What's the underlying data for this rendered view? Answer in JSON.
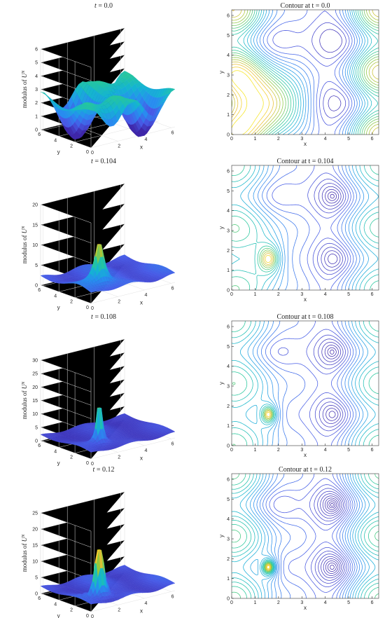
{
  "chart_data": [
    {
      "type": "surface",
      "t": "0.0",
      "title_prefix": "t = ",
      "title": "0.0",
      "zlabel": "modulus of U^N",
      "xlabel": "x",
      "ylabel": "y",
      "xlim": [
        0,
        6.2832
      ],
      "ylim": [
        0,
        6.2832
      ],
      "zlim": [
        0,
        6
      ],
      "xticks": [
        "0",
        "2",
        "4",
        "6"
      ],
      "yticks": [
        "0",
        "2",
        "4",
        "6"
      ],
      "zticks": [
        "0",
        "1",
        "2",
        "3",
        "4",
        "5",
        "6"
      ],
      "peak": 4.6,
      "peak_at": [
        1.57,
        1.57
      ],
      "base": 1.2,
      "sharpness": "smooth"
    },
    {
      "type": "contour",
      "title": "Contour at  t = 0.0",
      "xlabel": "x",
      "ylabel": "y",
      "xlim": [
        0,
        6.2832
      ],
      "ylim": [
        0,
        6.2832
      ],
      "xticks": [
        "0",
        "1",
        "2",
        "3",
        "4",
        "5",
        "6"
      ],
      "yticks": [
        "0",
        "1",
        "2",
        "3",
        "4",
        "5",
        "6"
      ],
      "center": [
        1.57,
        1.57
      ],
      "levels": 22
    },
    {
      "type": "surface",
      "title_prefix": "t = ",
      "title": "0.104",
      "zlabel": "modulus of U^N",
      "xlabel": "x",
      "ylabel": "y",
      "xlim": [
        0,
        6.2832
      ],
      "ylim": [
        0,
        6.2832
      ],
      "zlim": [
        0,
        20
      ],
      "xticks": [
        "0",
        "2",
        "4",
        "6"
      ],
      "yticks": [
        "0",
        "2",
        "4",
        "6"
      ],
      "zticks": [
        "0",
        "5",
        "10",
        "15",
        "20"
      ],
      "peak": 12,
      "peak_at": [
        1.57,
        1.57
      ],
      "base": 1.8,
      "sharpness": "sharp"
    },
    {
      "type": "contour",
      "title": "Contour at  t = 0.104",
      "xlabel": "x",
      "ylabel": "y",
      "xlim": [
        0,
        6.2832
      ],
      "ylim": [
        0,
        6.2832
      ],
      "xticks": [
        "0",
        "1",
        "2",
        "3",
        "4",
        "5",
        "6"
      ],
      "yticks": [
        "0",
        "1",
        "2",
        "3",
        "4",
        "5",
        "6"
      ],
      "center": [
        1.57,
        1.57
      ],
      "levels": 22
    },
    {
      "type": "surface",
      "title_prefix": "t = ",
      "title": "0.108",
      "zlabel": "modulus of U^N",
      "xlabel": "x",
      "ylabel": "y",
      "xlim": [
        0,
        6.2832
      ],
      "ylim": [
        0,
        6.2832
      ],
      "zlim": [
        0,
        30
      ],
      "xticks": [
        "0",
        "2",
        "4",
        "6"
      ],
      "yticks": [
        "0",
        "2",
        "4",
        "6"
      ],
      "zticks": [
        "0",
        "5",
        "10",
        "15",
        "20",
        "25",
        "30"
      ],
      "peak": 20,
      "peak_at": [
        1.57,
        1.57
      ],
      "base": 1.8,
      "sharpness": "very-sharp"
    },
    {
      "type": "contour",
      "title": "Contour at  t = 0.108",
      "xlabel": "x",
      "ylabel": "y",
      "xlim": [
        0,
        6.2832
      ],
      "ylim": [
        0,
        6.2832
      ],
      "xticks": [
        "0",
        "1",
        "2",
        "3",
        "4",
        "5",
        "6"
      ],
      "yticks": [
        "0",
        "1",
        "2",
        "3",
        "4",
        "5",
        "6"
      ],
      "center": [
        1.57,
        1.57
      ],
      "levels": 22
    },
    {
      "type": "surface",
      "title_prefix": "t = ",
      "title": "0.12",
      "zlabel": "modulus of U^N",
      "xlabel": "x",
      "ylabel": "y",
      "xlim": [
        0,
        6.2832
      ],
      "ylim": [
        0,
        6.2832
      ],
      "zlim": [
        0,
        25
      ],
      "xticks": [
        "0",
        "2",
        "4",
        "6"
      ],
      "yticks": [
        "0",
        "2",
        "4",
        "6"
      ],
      "zticks": [
        "0",
        "5",
        "10",
        "15",
        "20",
        "25"
      ],
      "peak": 14,
      "peak_at": [
        1.57,
        1.57
      ],
      "base": 1.8,
      "sharpness": "oscillatory"
    },
    {
      "type": "contour",
      "title": "Contour at  t = 0.12",
      "xlabel": "x",
      "ylabel": "y",
      "xlim": [
        0,
        6.2832
      ],
      "ylim": [
        0,
        6.2832
      ],
      "xticks": [
        "0",
        "1",
        "2",
        "3",
        "4",
        "5",
        "6"
      ],
      "yticks": [
        "0",
        "1",
        "2",
        "3",
        "4",
        "5",
        "6"
      ],
      "center": [
        1.57,
        1.57
      ],
      "levels": 30
    }
  ],
  "colors": {
    "parula_low": "#3e26a8",
    "parula_mid": "#21bfb2",
    "parula_high": "#f9fb15",
    "frame": "#333333",
    "grid": "#e2e2e2"
  }
}
